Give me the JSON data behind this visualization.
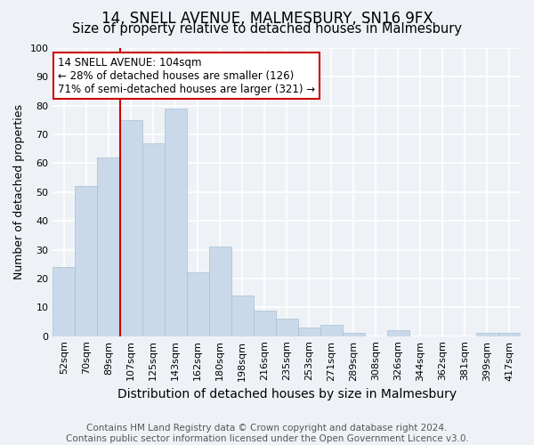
{
  "title": "14, SNELL AVENUE, MALMESBURY, SN16 9FX",
  "subtitle": "Size of property relative to detached houses in Malmesbury",
  "xlabel": "Distribution of detached houses by size in Malmesbury",
  "ylabel": "Number of detached properties",
  "bar_labels": [
    "52sqm",
    "70sqm",
    "89sqm",
    "107sqm",
    "125sqm",
    "143sqm",
    "162sqm",
    "180sqm",
    "198sqm",
    "216sqm",
    "235sqm",
    "253sqm",
    "271sqm",
    "289sqm",
    "308sqm",
    "326sqm",
    "344sqm",
    "362sqm",
    "381sqm",
    "399sqm",
    "417sqm"
  ],
  "bar_values": [
    24,
    52,
    62,
    75,
    67,
    79,
    22,
    31,
    14,
    9,
    6,
    3,
    4,
    1,
    0,
    2,
    0,
    0,
    0,
    1,
    1
  ],
  "bar_color": "#c9d9e9",
  "bar_edgecolor": "#a8bfcf",
  "vline_x": 2.5,
  "vline_color": "#cc0000",
  "ylim": [
    0,
    100
  ],
  "yticks": [
    0,
    10,
    20,
    30,
    40,
    50,
    60,
    70,
    80,
    90,
    100
  ],
  "annotation_text": "14 SNELL AVENUE: 104sqm\n← 28% of detached houses are smaller (126)\n71% of semi-detached houses are larger (321) →",
  "annotation_box_facecolor": "#ffffff",
  "annotation_box_edgecolor": "#cc0000",
  "footer_line1": "Contains HM Land Registry data © Crown copyright and database right 2024.",
  "footer_line2": "Contains public sector information licensed under the Open Government Licence v3.0.",
  "background_color": "#eef2f7",
  "grid_color": "#ffffff",
  "title_fontsize": 12,
  "subtitle_fontsize": 10.5,
  "xlabel_fontsize": 10,
  "ylabel_fontsize": 9,
  "tick_fontsize": 8,
  "annotation_fontsize": 8.5,
  "footer_fontsize": 7.5
}
